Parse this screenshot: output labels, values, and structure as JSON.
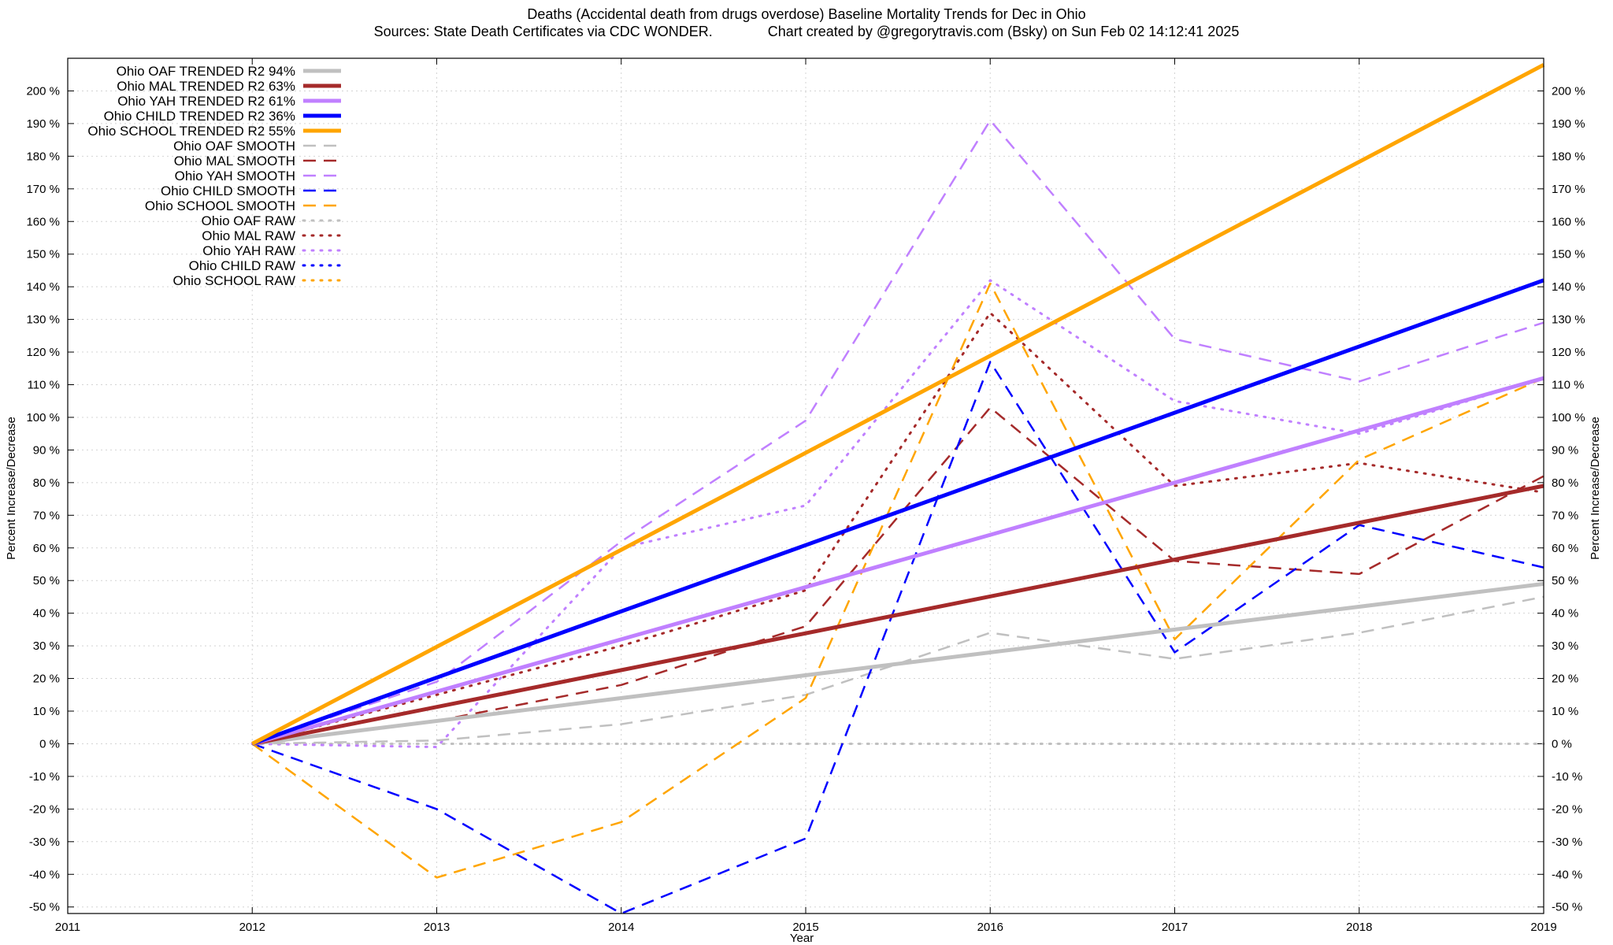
{
  "chart_data": {
    "type": "line",
    "title": "Deaths (Accidental death from drugs overdose)  Baseline Mortality Trends for Dec in Ohio",
    "subtitle": "Sources: State Death Certificates via CDC WONDER.              Chart created by @gregorytravis.com (Bsky) on Sun Feb 02 14:12:41 2025",
    "xlabel": "Year",
    "ylabel": "Percent Increase/Decrease",
    "xlim": [
      2011,
      2019
    ],
    "ylim": [
      -52,
      210
    ],
    "x_ticks": [
      {
        "value": 2011,
        "label": "2011"
      },
      {
        "value": 2012,
        "label": "2012"
      },
      {
        "value": 2013,
        "label": "2013"
      },
      {
        "value": 2014,
        "label": "2014"
      },
      {
        "value": 2015,
        "label": "2015"
      },
      {
        "value": 2016,
        "label": "2016"
      },
      {
        "value": 2017,
        "label": "2017"
      },
      {
        "value": 2018,
        "label": "2018"
      },
      {
        "value": 2019,
        "label": "2019"
      }
    ],
    "y_ticks": [
      {
        "value": 200,
        "label": "200 %"
      },
      {
        "value": 190,
        "label": "190 %"
      },
      {
        "value": 180,
        "label": "180 %"
      },
      {
        "value": 170,
        "label": "170 %"
      },
      {
        "value": 160,
        "label": "160 %"
      },
      {
        "value": 150,
        "label": "150 %"
      },
      {
        "value": 140,
        "label": "140 %"
      },
      {
        "value": 130,
        "label": "130 %"
      },
      {
        "value": 120,
        "label": "120 %"
      },
      {
        "value": 110,
        "label": "110 %"
      },
      {
        "value": 100,
        "label": "100 %"
      },
      {
        "value": 90,
        "label": "90 %"
      },
      {
        "value": 80,
        "label": "80 %"
      },
      {
        "value": 70,
        "label": "70 %"
      },
      {
        "value": 60,
        "label": "60 %"
      },
      {
        "value": 50,
        "label": "50 %"
      },
      {
        "value": 40,
        "label": "40 %"
      },
      {
        "value": 30,
        "label": "30 %"
      },
      {
        "value": 20,
        "label": "20 %"
      },
      {
        "value": 10,
        "label": "10 %"
      },
      {
        "value": 0,
        "label": "0 %"
      },
      {
        "value": -10,
        "label": "-10 %"
      },
      {
        "value": -20,
        "label": "-20 %"
      },
      {
        "value": -30,
        "label": "-30 %"
      },
      {
        "value": -40,
        "label": "-40 %"
      },
      {
        "value": -50,
        "label": "-50 %"
      }
    ],
    "grid": true,
    "legend_position": "top-left",
    "series": [
      {
        "name": "Ohio OAF TRENDED R2  94%",
        "kind": "trend",
        "color": "#c0c0c0",
        "x": [
          2012,
          2019
        ],
        "values": [
          0,
          49
        ]
      },
      {
        "name": "Ohio MAL TRENDED R2  63%",
        "kind": "trend",
        "color": "#a52a2a",
        "x": [
          2012,
          2019
        ],
        "values": [
          0,
          79
        ]
      },
      {
        "name": "Ohio YAH TRENDED R2  61%",
        "kind": "trend",
        "color": "#c080ff",
        "x": [
          2012,
          2019
        ],
        "values": [
          0,
          112
        ]
      },
      {
        "name": "Ohio CHILD TRENDED R2  36%",
        "kind": "trend",
        "color": "#0000ff",
        "x": [
          2012,
          2019
        ],
        "values": [
          0,
          142
        ]
      },
      {
        "name": "Ohio SCHOOL TRENDED R2  55%",
        "kind": "trend",
        "color": "#ffa500",
        "x": [
          2012,
          2019
        ],
        "values": [
          0,
          208
        ]
      },
      {
        "name": "Ohio OAF SMOOTH",
        "kind": "smooth",
        "color": "#c0c0c0",
        "x": [
          2012,
          2013,
          2014,
          2015,
          2016,
          2017,
          2018,
          2019
        ],
        "values": [
          0,
          1,
          6,
          15,
          34,
          26,
          34,
          45
        ]
      },
      {
        "name": "Ohio MAL SMOOTH",
        "kind": "smooth",
        "color": "#a52a2a",
        "x": [
          2012,
          2013,
          2014,
          2015,
          2016,
          2017,
          2018,
          2019
        ],
        "values": [
          0,
          7,
          18,
          36,
          103,
          56,
          52,
          82
        ]
      },
      {
        "name": "Ohio YAH SMOOTH",
        "kind": "smooth",
        "color": "#c080ff",
        "x": [
          2012,
          2013,
          2014,
          2015,
          2016,
          2017,
          2018,
          2019
        ],
        "values": [
          0,
          19,
          62,
          99,
          191,
          124,
          111,
          129
        ]
      },
      {
        "name": "Ohio CHILD SMOOTH",
        "kind": "smooth",
        "color": "#0000ff",
        "x": [
          2012,
          2013,
          2014,
          2015,
          2016,
          2017,
          2018,
          2019
        ],
        "values": [
          0,
          -20,
          -52,
          -29,
          117,
          28,
          67,
          54
        ]
      },
      {
        "name": "Ohio SCHOOL SMOOTH",
        "kind": "smooth",
        "color": "#ffa500",
        "x": [
          2012,
          2013,
          2014,
          2015,
          2016,
          2017,
          2018,
          2019
        ],
        "values": [
          0,
          -41,
          -24,
          14,
          141,
          32,
          87,
          112
        ]
      },
      {
        "name": "Ohio OAF RAW",
        "kind": "raw",
        "color": "#c0c0c0",
        "x": [
          2012,
          2019
        ],
        "values": [
          0,
          0
        ]
      },
      {
        "name": "Ohio MAL RAW",
        "kind": "raw",
        "color": "#a52a2a",
        "x": [
          2012,
          2013,
          2014,
          2015,
          2016,
          2017,
          2018,
          2019
        ],
        "values": [
          0,
          15,
          30,
          47,
          132,
          79,
          86,
          77
        ]
      },
      {
        "name": "Ohio YAH RAW",
        "kind": "raw",
        "color": "#c080ff",
        "x": [
          2012,
          2013,
          2014,
          2015,
          2016,
          2017,
          2018,
          2019
        ],
        "values": [
          0,
          -1,
          60,
          73,
          142,
          105,
          95,
          112
        ]
      },
      {
        "name": "Ohio CHILD RAW",
        "kind": "raw",
        "color": "#0000ff",
        "x": [],
        "values": []
      },
      {
        "name": "Ohio SCHOOL RAW",
        "kind": "raw",
        "color": "#ffa500",
        "x": [],
        "values": []
      }
    ]
  }
}
